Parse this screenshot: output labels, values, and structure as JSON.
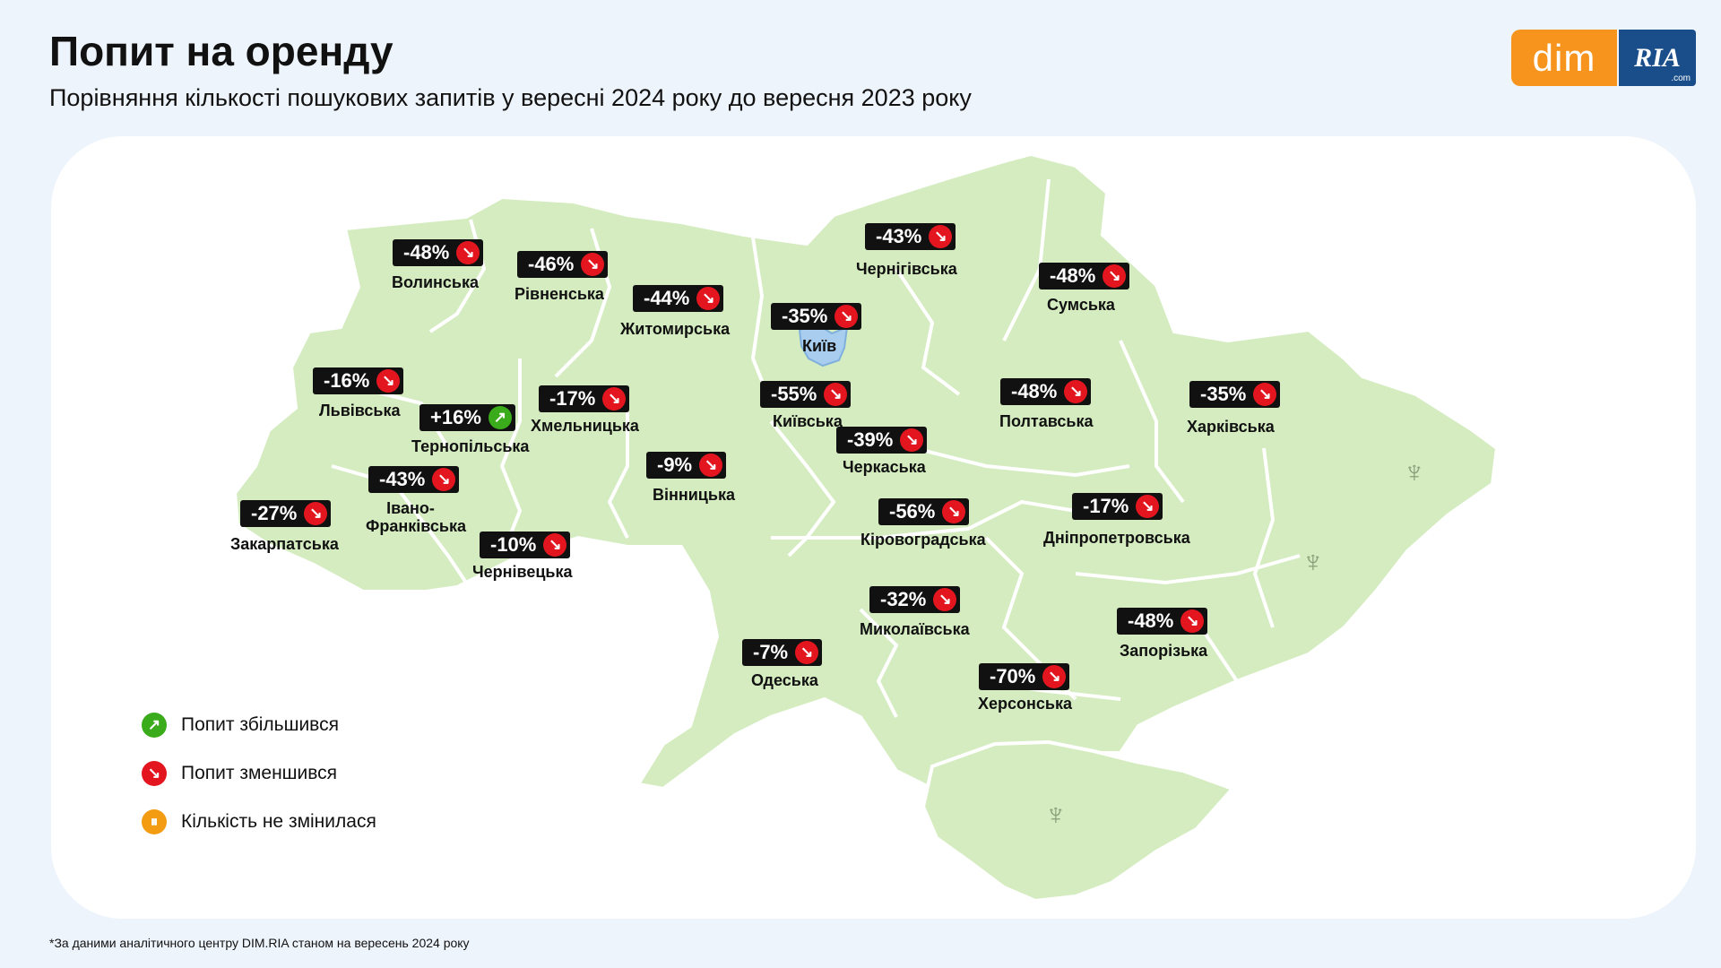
{
  "title": "Попит на оренду",
  "subtitle": "Порівняння кількості пошукових запитів у вересні 2024 року до вересня 2023 року",
  "logo": {
    "left": "dim",
    "right": "RIA",
    "right_suffix": ".com"
  },
  "colors": {
    "map_fill": "#d4ecc0",
    "map_border": "#ffffff",
    "kyiv_fill": "#a8cdee",
    "down": "#e3161f",
    "up": "#3aab1a",
    "same": "#f39c12"
  },
  "regions": [
    {
      "name": "Волинська",
      "change": "-48%",
      "trend": "down"
    },
    {
      "name": "Рівненська",
      "change": "-46%",
      "trend": "down"
    },
    {
      "name": "Житомирська",
      "change": "-44%",
      "trend": "down"
    },
    {
      "name": "Чернігівська",
      "change": "-43%",
      "trend": "down"
    },
    {
      "name": "Сумська",
      "change": "-48%",
      "trend": "down"
    },
    {
      "name": "Київ",
      "change": "-35%",
      "trend": "down"
    },
    {
      "name": "Львівська",
      "change": "-16%",
      "trend": "down"
    },
    {
      "name": "Тернопільська",
      "change": "+16%",
      "trend": "up"
    },
    {
      "name": "Хмельницька",
      "change": "-17%",
      "trend": "down"
    },
    {
      "name": "Київська",
      "change": "-55%",
      "trend": "down"
    },
    {
      "name": "Полтавська",
      "change": "-48%",
      "trend": "down"
    },
    {
      "name": "Харківська",
      "change": "-35%",
      "trend": "down"
    },
    {
      "name": "Черкаська",
      "change": "-39%",
      "trend": "down"
    },
    {
      "name": "Вінницька",
      "change": "-9%",
      "trend": "down"
    },
    {
      "name": "Івано-Франківська",
      "change": "-43%",
      "trend": "down"
    },
    {
      "name": "Закарпатська",
      "change": "-27%",
      "trend": "down"
    },
    {
      "name": "Чернівецька",
      "change": "-10%",
      "trend": "down"
    },
    {
      "name": "Кіровоградська",
      "change": "-56%",
      "trend": "down"
    },
    {
      "name": "Дніпропетровська",
      "change": "-17%",
      "trend": "down"
    },
    {
      "name": "Миколаївська",
      "change": "-32%",
      "trend": "down"
    },
    {
      "name": "Одеська",
      "change": "-7%",
      "trend": "down"
    },
    {
      "name": "Запорізька",
      "change": "-48%",
      "trend": "down"
    },
    {
      "name": "Херсонська",
      "change": "-70%",
      "trend": "down"
    }
  ],
  "legend": [
    {
      "label": "Попит збільшився",
      "icon": "up-arrow-icon",
      "type": "up"
    },
    {
      "label": "Попит зменшився",
      "icon": "down-arrow-icon",
      "type": "down"
    },
    {
      "label": "Кількість не змінилася",
      "icon": "pause-icon",
      "type": "same"
    }
  ],
  "footnote": "*За даними аналітичного центру DIM.RIA станом на вересень 2024 року"
}
